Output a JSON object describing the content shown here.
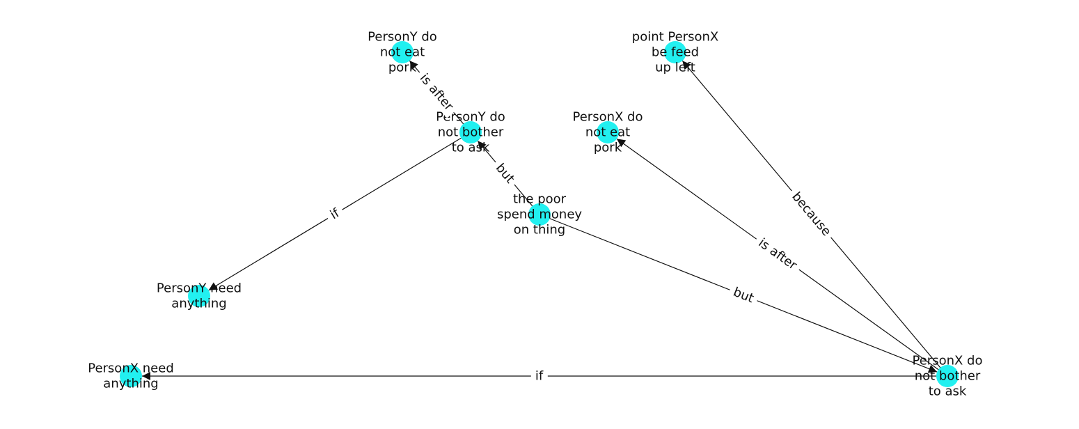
{
  "colors": {
    "node_fill": "#22f0f0",
    "edge_stroke": "#111111",
    "text": "#111111",
    "background": "#ffffff"
  },
  "nodes": [
    {
      "id": "py-not-eat-pork",
      "label": [
        "PersonY do",
        "not eat",
        "pork"
      ]
    },
    {
      "id": "px-point-fed-up",
      "label": [
        "point PersonX",
        "be feed",
        "up left"
      ]
    },
    {
      "id": "py-not-bother",
      "label": [
        "PersonY do",
        "not bother",
        "to ask"
      ]
    },
    {
      "id": "px-not-eat-pork",
      "label": [
        "PersonX do",
        "not eat",
        "pork"
      ]
    },
    {
      "id": "poor-spend",
      "label": [
        "the poor",
        "spend money",
        "on thing"
      ]
    },
    {
      "id": "py-need",
      "label": [
        "PersonY need",
        "anything"
      ]
    },
    {
      "id": "px-need",
      "label": [
        "PersonX need",
        "anything"
      ]
    },
    {
      "id": "px-not-bother",
      "label": [
        "PersonX do",
        "not bother",
        "to ask"
      ]
    }
  ],
  "edges": [
    {
      "source": "py-not-bother",
      "target": "py-not-eat-pork",
      "label": "is after"
    },
    {
      "source": "py-not-bother",
      "target": "py-need",
      "label": "if"
    },
    {
      "source": "poor-spend",
      "target": "py-not-bother",
      "label": "but"
    },
    {
      "source": "poor-spend",
      "target": "px-not-bother",
      "label": "but"
    },
    {
      "source": "px-not-bother",
      "target": "px-not-eat-pork",
      "label": "is after"
    },
    {
      "source": "px-not-bother",
      "target": "px-point-fed-up",
      "label": "because"
    },
    {
      "source": "px-not-bother",
      "target": "px-need",
      "label": "if"
    }
  ]
}
